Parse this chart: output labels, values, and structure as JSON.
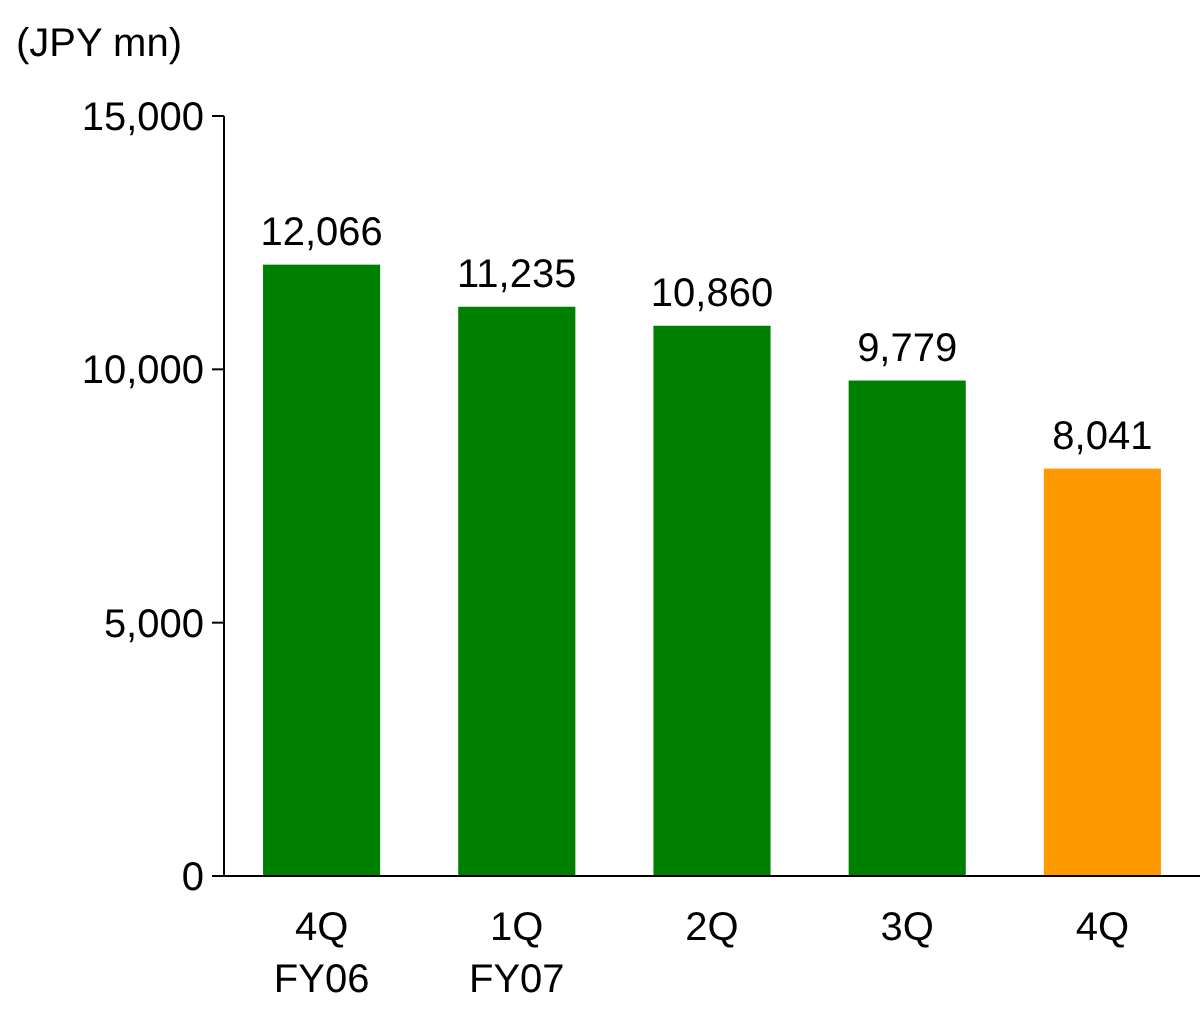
{
  "chart_data": {
    "type": "bar",
    "ylabel": "(JPY mn)",
    "categories": [
      "4Q\nFY06",
      "1Q\nFY07",
      "2Q",
      "3Q",
      "4Q"
    ],
    "values": [
      12066,
      11235,
      10860,
      9779,
      8041
    ],
    "colors": [
      "#008000",
      "#008000",
      "#008000",
      "#008000",
      "#ff9900"
    ],
    "ylim": [
      0,
      15000
    ],
    "yticks": [
      {
        "value": 0,
        "label": "0"
      },
      {
        "value": 5000,
        "label": "5,000"
      },
      {
        "value": 10000,
        "label": "10,000"
      },
      {
        "value": 15000,
        "label": "15,000"
      }
    ],
    "value_labels": [
      "12,066",
      "11,235",
      "10,860",
      "9,779",
      "8,041"
    ]
  }
}
